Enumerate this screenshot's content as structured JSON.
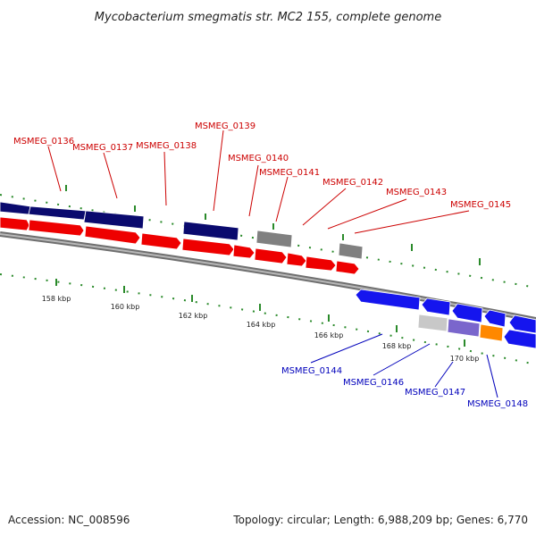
{
  "title": "Mycobacterium smegmatis str. MC2 155, complete genome",
  "footer": {
    "accession": "Accession: NC_008596",
    "summary": "Topology: circular; Length: 6,988,209 bp; Genes: 6,770"
  },
  "colors": {
    "forward_cds": "#ee0000",
    "forward_gene": "#0a0a6e",
    "reverse_cds": "#1515ee",
    "rna": "#808080",
    "backbone": "#8a8a8a",
    "tick": "#2a8a2a",
    "forward_label": "#cc0000",
    "reverse_label": "#0000bb"
  },
  "scale_ticks": [
    "158 kbp",
    "160 kbp",
    "162 kbp",
    "164 kbp",
    "166 kbp",
    "168 kbp",
    "170 kbp"
  ],
  "forward_labels": [
    "MSMEG_0136",
    "MSMEG_0137",
    "MSMEG_0138",
    "MSMEG_0139",
    "MSMEG_0140",
    "MSMEG_0141",
    "MSMEG_0142",
    "MSMEG_0143",
    "MSMEG_0145"
  ],
  "reverse_labels": [
    "MSMEG_0144",
    "MSMEG_0146",
    "MSMEG_0147",
    "MSMEG_0148"
  ]
}
